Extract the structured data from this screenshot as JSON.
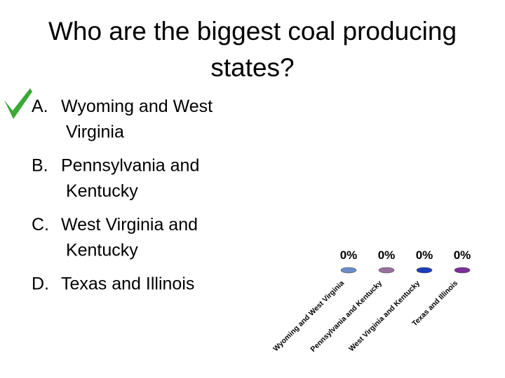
{
  "title": "Who are the biggest coal producing states?",
  "options": [
    {
      "letter": "A.",
      "text": "Wyoming and West Virginia"
    },
    {
      "letter": "B.",
      "text": "Pennsylvania and Kentucky"
    },
    {
      "letter": "C.",
      "text": "West Virginia and Kentucky"
    },
    {
      "letter": "D.",
      "text": "Texas and Illinois"
    }
  ],
  "chart_data": {
    "type": "bar",
    "categories": [
      "Wyoming and West Virginia",
      "Pennsylvania and Kentucky",
      "West Virginia and Kentucky",
      "Texas and Illinois"
    ],
    "values": [
      0,
      0,
      0,
      0
    ],
    "value_labels": [
      "0%",
      "0%",
      "0%",
      "0%"
    ],
    "colors": [
      "#6b8cc7",
      "#9a6f9e",
      "#1c3cb8",
      "#7a2f9a"
    ],
    "ylim": [
      0,
      100
    ]
  }
}
